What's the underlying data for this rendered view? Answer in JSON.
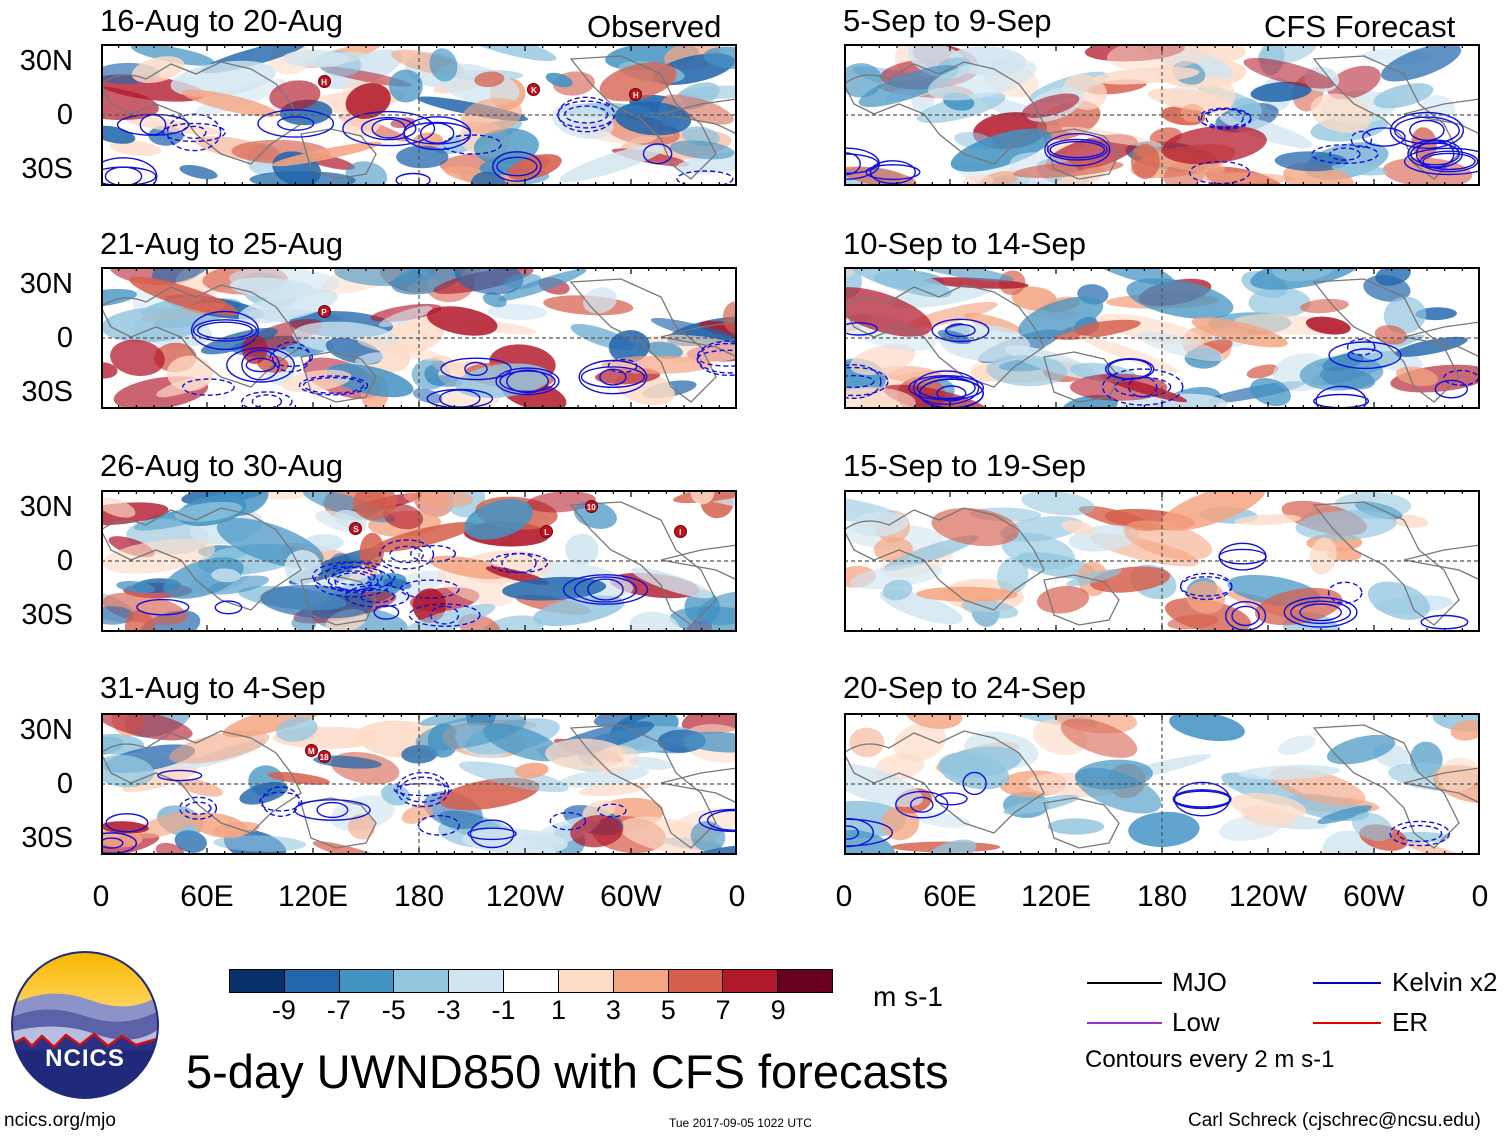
{
  "titles": {
    "observed": "Observed",
    "forecast": "CFS Forecast"
  },
  "panels_left": [
    {
      "label": "16-Aug to 20-Aug"
    },
    {
      "label": "21-Aug to 25-Aug"
    },
    {
      "label": "26-Aug to 30-Aug"
    },
    {
      "label": "31-Aug to 4-Sep"
    }
  ],
  "panels_right": [
    {
      "label": "5-Sep to 9-Sep"
    },
    {
      "label": "10-Sep to 14-Sep"
    },
    {
      "label": "15-Sep to 19-Sep"
    },
    {
      "label": "20-Sep to 24-Sep"
    }
  ],
  "lat_labels": [
    "30N",
    "0",
    "30S"
  ],
  "lon_labels": [
    "0",
    "60E",
    "120E",
    "180",
    "120W",
    "60W",
    "0"
  ],
  "storm_markers": [
    {
      "panel": 0,
      "letter": "H"
    },
    {
      "panel": 0,
      "letter": "K"
    },
    {
      "panel": 0,
      "letter": "H"
    },
    {
      "panel": 1,
      "letter": "P"
    },
    {
      "panel": 2,
      "letter": "S"
    },
    {
      "panel": 2,
      "letter": "L"
    },
    {
      "panel": 2,
      "letter": "10"
    },
    {
      "panel": 2,
      "letter": "I"
    },
    {
      "panel": 3,
      "letter": "M"
    },
    {
      "panel": 3,
      "letter": "18"
    }
  ],
  "colorbar": {
    "colors": [
      "#08306b",
      "#2166ac",
      "#4393c3",
      "#92c5de",
      "#d1e5f0",
      "#ffffff",
      "#fddbc7",
      "#f4a582",
      "#d6604d",
      "#b2182b",
      "#67001f"
    ],
    "labels": [
      "-9",
      "-7",
      "-5",
      "-3",
      "-1",
      "1",
      "3",
      "5",
      "7",
      "9"
    ],
    "units": "m s-1"
  },
  "legend": {
    "items": [
      {
        "label": "MJO",
        "color": "#000000"
      },
      {
        "label": "Kelvin x2",
        "color": "#0000cc"
      },
      {
        "label": "Low",
        "color": "#9933cc"
      },
      {
        "label": "ER",
        "color": "#dd0000"
      }
    ],
    "contours": "Contours every 2 m s-1"
  },
  "main_title": "5-day UWND850 with CFS forecasts",
  "logo_text": "NCICS",
  "footer": {
    "url": "ncics.org/mjo",
    "timestamp": "Tue 2017-09-05 1022 UTC",
    "credit": "Carl Schreck (cjschrec@ncsu.edu)"
  }
}
